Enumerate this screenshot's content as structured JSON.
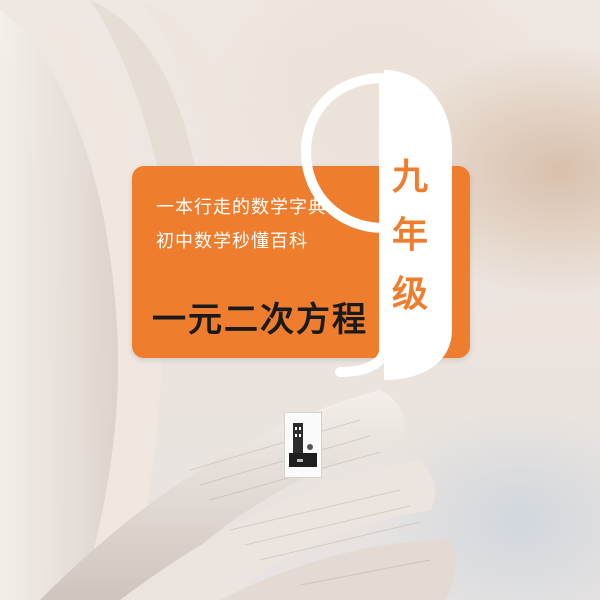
{
  "banner": {
    "slogan_line1": "一本行走的数学字典",
    "slogan_line2": "初中数学秒懂百科",
    "topic": "一元二次方程"
  },
  "grade_badge": {
    "digit": "9",
    "chars": [
      "九",
      "年",
      "级"
    ]
  },
  "colors": {
    "accent_orange": "#ee7d2e",
    "topic_text": "#1a1a1a",
    "badge_white": "#ffffff"
  },
  "icons": [
    "open-book-background",
    "logo-icon"
  ]
}
